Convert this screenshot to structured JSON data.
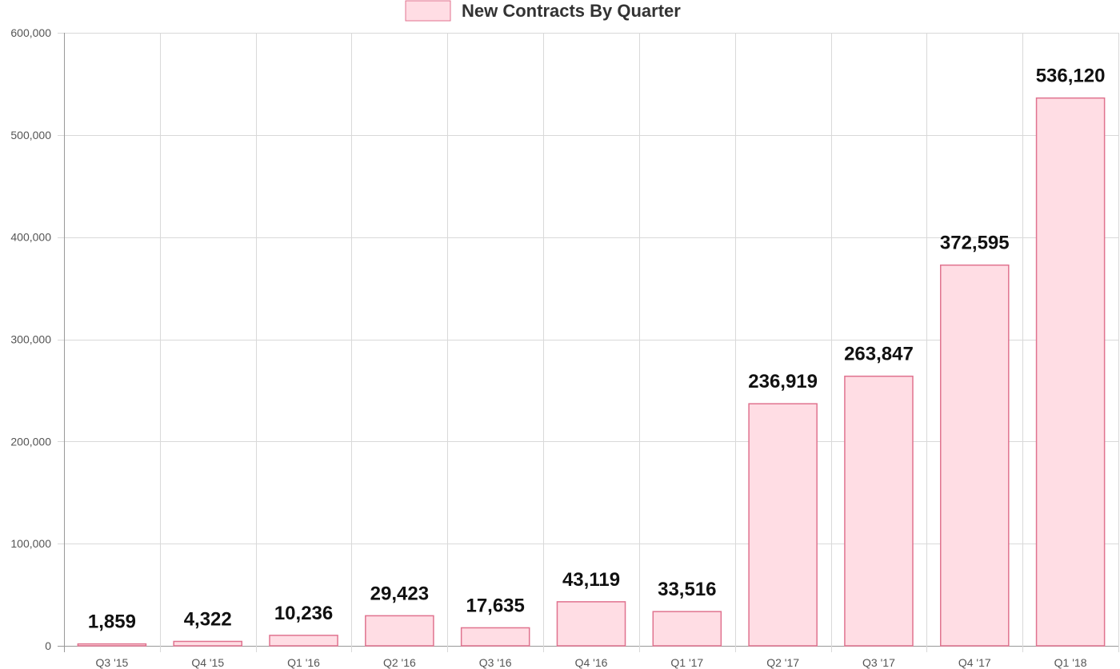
{
  "chart_data": {
    "type": "bar",
    "categories": [
      "Q3 '15",
      "Q4 '15",
      "Q1 '16",
      "Q2 '16",
      "Q3 '16",
      "Q4 '16",
      "Q1 '17",
      "Q2 '17",
      "Q3 '17",
      "Q4 '17",
      "Q1 '18"
    ],
    "series": [
      {
        "name": "New Contracts By Quarter",
        "values": [
          1859,
          4322,
          10236,
          29423,
          17635,
          43119,
          33516,
          236919,
          263847,
          372595,
          536120
        ],
        "color": "#ffdde4",
        "border_color": "#e0738f"
      }
    ],
    "data_labels": [
      "1,859",
      "4,322",
      "10,236",
      "29,423",
      "17,635",
      "43,119",
      "33,516",
      "236,919",
      "263,847",
      "372,595",
      "536,120"
    ],
    "y_ticks": [
      0,
      100000,
      200000,
      300000,
      400000,
      500000,
      600000
    ],
    "y_tick_labels": [
      "0",
      "100,000",
      "200,000",
      "300,000",
      "400,000",
      "500,000",
      "600,000"
    ],
    "ylim": [
      0,
      600000
    ],
    "grid": true,
    "legend_position": "top-center",
    "title": "",
    "xlabel": "",
    "ylabel": ""
  }
}
